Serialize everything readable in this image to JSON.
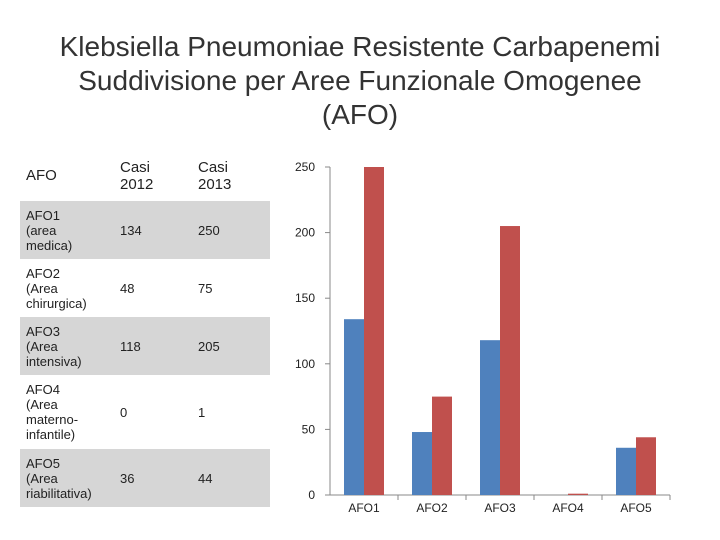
{
  "title": {
    "line1": "Klebsiella Pneumoniae Resistente Carbapenemi",
    "line2": "Suddivisione per Aree Funzionale Omogenee",
    "line3": "(AFO)"
  },
  "table": {
    "headers": [
      "AFO",
      "Casi\n2012",
      "Casi\n2013"
    ],
    "rows": [
      {
        "afo": "AFO1\n(area\nmedica)",
        "c2012": "134",
        "c2013": "250"
      },
      {
        "afo": "AFO2\n(Area\nchirurgica)",
        "c2012": "48",
        "c2013": "75"
      },
      {
        "afo": "AFO3\n(Area\nintensiva)",
        "c2012": "118",
        "c2013": "205"
      },
      {
        "afo": "AFO4\n(Area\nmaterno-\ninfantile)",
        "c2012": "0",
        "c2013": "1"
      },
      {
        "afo": "AFO5\n(Area\nriabilitativa)",
        "c2012": "36",
        "c2013": "44"
      }
    ]
  },
  "chart_data": {
    "type": "bar",
    "title": "",
    "xlabel": "",
    "ylabel": "",
    "categories": [
      "AFO1",
      "AFO2",
      "AFO3",
      "AFO4",
      "AFO5"
    ],
    "series": [
      {
        "name": "Casi 2012",
        "color": "#4f81bd",
        "values": [
          134,
          48,
          118,
          0,
          36
        ]
      },
      {
        "name": "Casi 2013",
        "color": "#c0504d",
        "values": [
          250,
          75,
          205,
          1,
          44
        ]
      }
    ],
    "ylim": [
      0,
      250
    ],
    "yticks": [
      0,
      50,
      100,
      150,
      200,
      250
    ],
    "grid": false,
    "legend": "none"
  }
}
